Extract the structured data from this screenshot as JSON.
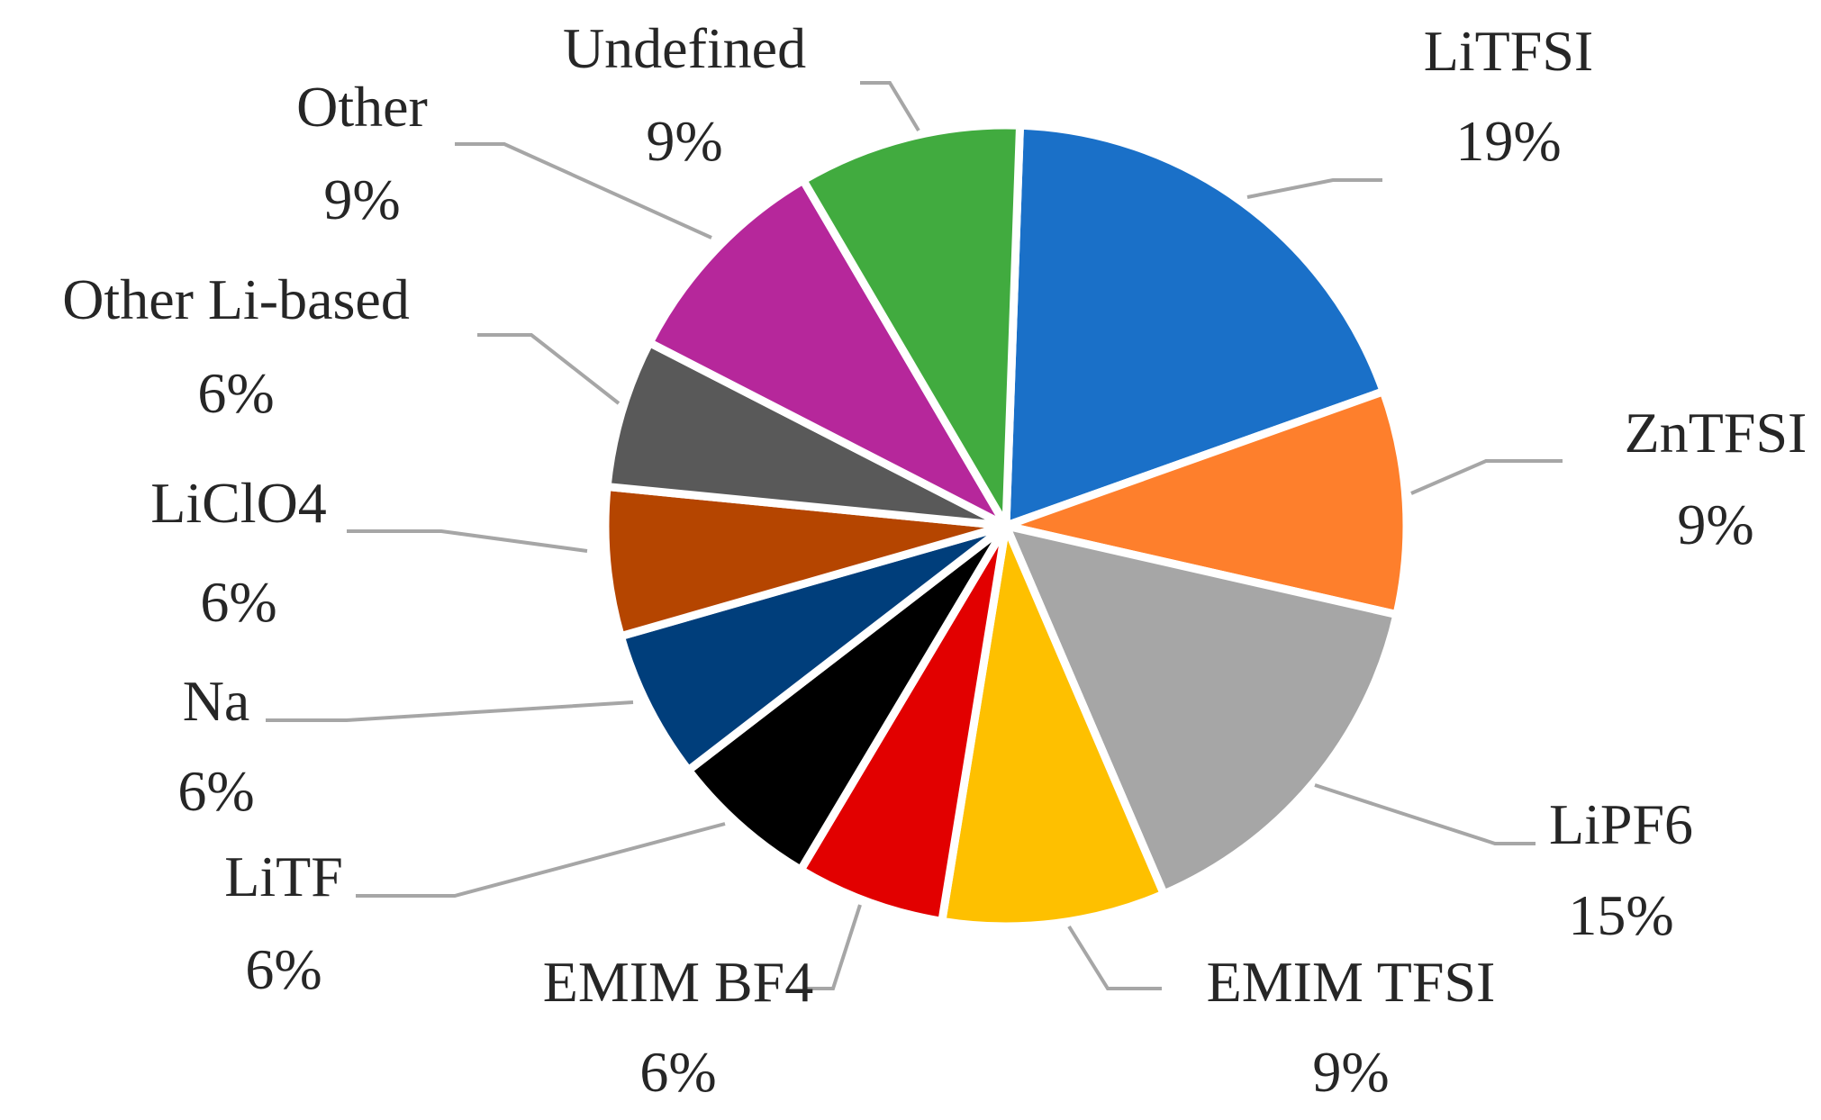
{
  "chart_data": {
    "type": "pie",
    "title": "",
    "slices": [
      {
        "label": "LiTFSI",
        "value": 19,
        "value_label": "19%",
        "color": "#1a70c8"
      },
      {
        "label": "ZnTFSI",
        "value": 9,
        "value_label": "9%",
        "color": "#fe7f2c"
      },
      {
        "label": "LiPF6",
        "value": 15,
        "value_label": "15%",
        "color": "#a6a6a6"
      },
      {
        "label": "EMIM TFSI",
        "value": 9,
        "value_label": "9%",
        "color": "#fec000"
      },
      {
        "label": "EMIM BF4",
        "value": 6,
        "value_label": "6%",
        "color": "#e20000"
      },
      {
        "label": "LiTF",
        "value": 6,
        "value_label": "6%",
        "color": "#000000"
      },
      {
        "label": "Na",
        "value": 6,
        "value_label": "6%",
        "color": "#003e7b"
      },
      {
        "label": "LiClO4",
        "value": 6,
        "value_label": "6%",
        "color": "#b54500"
      },
      {
        "label": "Other Li-based",
        "value": 6,
        "value_label": "6%",
        "color": "#595959"
      },
      {
        "label": "Other",
        "value": 9,
        "value_label": "9%",
        "color": "#b6279b"
      },
      {
        "label": "Undefined",
        "value": 9,
        "value_label": "9%",
        "color": "#41ab3f"
      }
    ],
    "legend": "none",
    "data_labels": "outside-with-leader-lines"
  }
}
